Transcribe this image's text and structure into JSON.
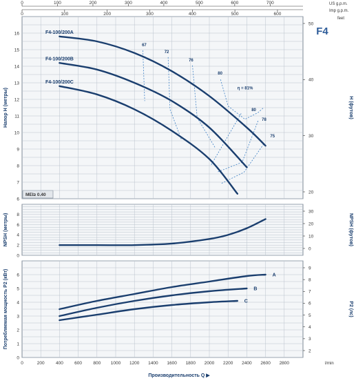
{
  "model": "F4",
  "mei": "MEI≥ 0.40",
  "scales": {
    "us_gpm": {
      "unit": "US g.p.m.",
      "ticks": [
        0,
        100,
        200,
        300,
        400,
        500,
        600,
        700
      ]
    },
    "imp_gpm": {
      "unit": "Imp g.p.m.",
      "ticks": [
        0,
        100,
        200,
        300,
        400,
        500,
        600
      ]
    },
    "feet": {
      "unit": "feet"
    }
  },
  "chart_data": [
    {
      "name": "head",
      "type": "line",
      "ylabel": "Напор H (метры)",
      "ylabel_right": "H (футов)",
      "xlim": [
        0,
        3000
      ],
      "ylim": [
        6,
        17
      ],
      "yticks": [
        6,
        7,
        8,
        9,
        10,
        11,
        12,
        13,
        14,
        15,
        16
      ],
      "yticks_right": [
        20,
        30,
        40,
        50
      ],
      "series": [
        {
          "name": "F4-100/200A",
          "x": [
            400,
            800,
            1200,
            1600,
            2000,
            2400,
            2600
          ],
          "y": [
            15.8,
            15.5,
            14.8,
            13.7,
            12.2,
            10.3,
            9.2
          ]
        },
        {
          "name": "F4-100/200B",
          "x": [
            400,
            800,
            1200,
            1600,
            2000,
            2400
          ],
          "y": [
            14.2,
            13.8,
            13.0,
            11.9,
            10.3,
            7.9
          ]
        },
        {
          "name": "F4-100/200C",
          "x": [
            400,
            800,
            1200,
            1600,
            2000,
            2300
          ],
          "y": [
            12.8,
            12.3,
            11.4,
            10.1,
            8.4,
            6.3
          ]
        }
      ],
      "efficiency": {
        "labels": [
          "67",
          "72",
          "76",
          "80",
          "η = 81%",
          "80",
          "78",
          "75"
        ]
      },
      "grid": true
    },
    {
      "name": "npsh",
      "type": "line",
      "ylabel": "NPSH (метры)",
      "ylabel_right": "NPSH (футов)",
      "xlim": [
        0,
        3000
      ],
      "ylim": [
        0,
        10
      ],
      "yticks": [
        0,
        2,
        4,
        6,
        8
      ],
      "yticks_right": [
        0,
        10,
        20,
        30
      ],
      "series": [
        {
          "x": [
            400,
            800,
            1200,
            1600,
            2000,
            2200,
            2400,
            2600
          ],
          "y": [
            2.0,
            2.0,
            2.0,
            2.3,
            3.2,
            4.0,
            5.3,
            7.1
          ]
        }
      ],
      "grid": true
    },
    {
      "name": "power",
      "type": "line",
      "ylabel": "Потребляемая мощность P2 (кВт)",
      "ylabel_right": "P2 (лс)",
      "xlabel": "Производительность Q",
      "xunit": "l/min",
      "xlim": [
        0,
        3000
      ],
      "xticks": [
        0,
        200,
        400,
        600,
        800,
        1000,
        1200,
        1400,
        1600,
        1800,
        2000,
        2200,
        2400,
        2600,
        2800
      ],
      "ylim": [
        0,
        7
      ],
      "yticks": [
        0,
        1,
        2,
        3,
        4,
        5,
        6
      ],
      "yticks_right": [
        2,
        3,
        4,
        5,
        6,
        7,
        8,
        9
      ],
      "series": [
        {
          "name": "A",
          "x": [
            400,
            800,
            1200,
            1600,
            2000,
            2400,
            2600
          ],
          "y": [
            3.5,
            4.1,
            4.6,
            5.1,
            5.5,
            5.9,
            6.0
          ]
        },
        {
          "name": "B",
          "x": [
            400,
            800,
            1200,
            1600,
            2000,
            2400
          ],
          "y": [
            3.0,
            3.6,
            4.1,
            4.5,
            4.8,
            5.0
          ]
        },
        {
          "name": "C",
          "x": [
            400,
            800,
            1200,
            1600,
            2000,
            2300
          ],
          "y": [
            2.7,
            3.1,
            3.5,
            3.8,
            4.0,
            4.1
          ]
        }
      ],
      "grid": true
    }
  ]
}
